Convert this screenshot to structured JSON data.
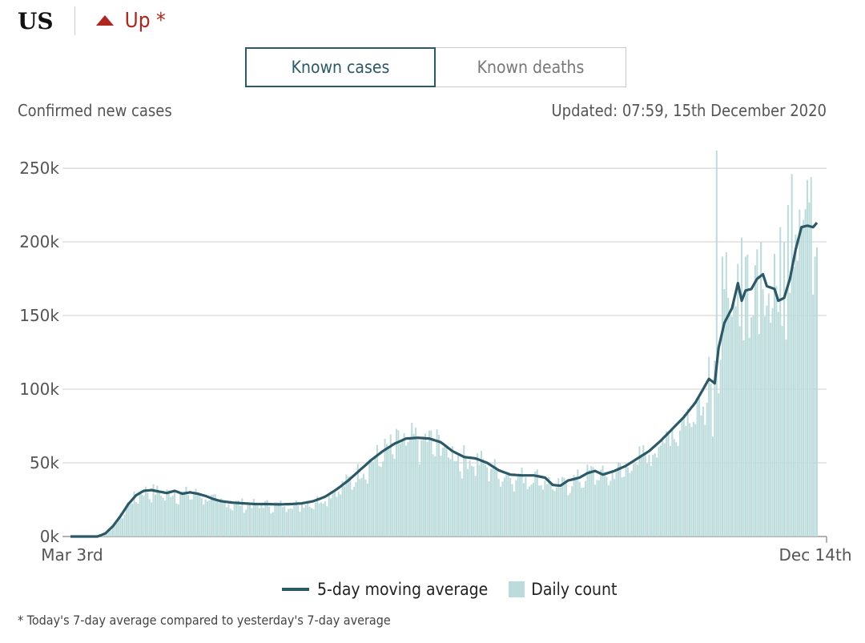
{
  "header": {
    "region": "US",
    "trend_label": "Up *",
    "trend_icon": "triangle-up-icon",
    "trend_color": "#b0261e"
  },
  "tabs": [
    {
      "label": "Known cases",
      "active": true
    },
    {
      "label": "Known deaths",
      "active": false
    }
  ],
  "subtitle_left": "Confirmed new cases",
  "updated": "Updated: 07:59, 15th December 2020",
  "legend": {
    "line_label": "5-day moving average",
    "bar_label": "Daily count"
  },
  "footnote": "* Today's 7-day average compared to yesterday's 7-day average",
  "colors": {
    "line": "#2b5967",
    "bar": "#bcdcdc",
    "grid": "#dddddd",
    "accent": "#b0261e"
  },
  "chart_data": {
    "type": "bar",
    "title": "",
    "xlabel": "",
    "ylabel": "",
    "x_tick_labels": [
      "Mar 3rd",
      "Dec 14th"
    ],
    "y_tick_labels": [
      "0k",
      "50k",
      "100k",
      "150k",
      "200k",
      "250k"
    ],
    "y_ticks": [
      0,
      50000,
      100000,
      150000,
      200000,
      250000
    ],
    "ylim": [
      0,
      262000
    ],
    "grid": true,
    "legend_position": "bottom",
    "series_names": {
      "line": "5-day moving average",
      "bars": "Daily count"
    },
    "avg_knots": [
      [
        0,
        0
      ],
      [
        14,
        0
      ],
      [
        18,
        2000
      ],
      [
        22,
        7000
      ],
      [
        26,
        14000
      ],
      [
        30,
        22000
      ],
      [
        34,
        28000
      ],
      [
        38,
        31000
      ],
      [
        42,
        31500
      ],
      [
        46,
        30500
      ],
      [
        50,
        29500
      ],
      [
        54,
        31000
      ],
      [
        58,
        29000
      ],
      [
        62,
        30000
      ],
      [
        66,
        29000
      ],
      [
        70,
        27500
      ],
      [
        74,
        25500
      ],
      [
        78,
        24000
      ],
      [
        84,
        23000
      ],
      [
        90,
        22500
      ],
      [
        96,
        22000
      ],
      [
        102,
        22000
      ],
      [
        108,
        21800
      ],
      [
        114,
        22000
      ],
      [
        120,
        22500
      ],
      [
        126,
        24000
      ],
      [
        132,
        27000
      ],
      [
        138,
        32000
      ],
      [
        144,
        38000
      ],
      [
        150,
        45000
      ],
      [
        156,
        52000
      ],
      [
        162,
        58000
      ],
      [
        168,
        63000
      ],
      [
        174,
        66500
      ],
      [
        180,
        67000
      ],
      [
        186,
        66500
      ],
      [
        192,
        64000
      ],
      [
        198,
        58000
      ],
      [
        204,
        54000
      ],
      [
        210,
        53000
      ],
      [
        216,
        50000
      ],
      [
        222,
        45000
      ],
      [
        228,
        42000
      ],
      [
        234,
        41500
      ],
      [
        240,
        41500
      ],
      [
        246,
        40000
      ],
      [
        250,
        35000
      ],
      [
        254,
        34500
      ],
      [
        258,
        38000
      ],
      [
        264,
        40000
      ],
      [
        268,
        43000
      ],
      [
        272,
        44500
      ],
      [
        276,
        42000
      ],
      [
        282,
        44500
      ],
      [
        288,
        48000
      ],
      [
        294,
        53000
      ],
      [
        300,
        58000
      ],
      [
        306,
        65000
      ],
      [
        312,
        73000
      ],
      [
        318,
        81000
      ],
      [
        324,
        91000
      ],
      [
        328,
        100000
      ],
      [
        331,
        107000
      ],
      [
        334,
        104000
      ],
      [
        336,
        128000
      ],
      [
        339,
        145000
      ],
      [
        343,
        155000
      ],
      [
        346,
        172000
      ],
      [
        348,
        160000
      ],
      [
        350,
        167000
      ],
      [
        353,
        168000
      ],
      [
        356,
        175000
      ],
      [
        359,
        178000
      ],
      [
        361,
        170000
      ],
      [
        365,
        168000
      ],
      [
        367,
        160000
      ],
      [
        370,
        162000
      ],
      [
        373,
        175000
      ],
      [
        376,
        195000
      ],
      [
        379,
        210000
      ],
      [
        382,
        211000
      ],
      [
        385,
        210000
      ],
      [
        387,
        213000
      ]
    ],
    "daily_note": "daily bar values approximated around the moving average",
    "daily_spikes": [
      [
        331,
        122000
      ],
      [
        333,
        68000
      ],
      [
        335,
        262000
      ],
      [
        337,
        120000
      ],
      [
        338,
        190000
      ],
      [
        340,
        193000
      ],
      [
        342,
        150000
      ],
      [
        344,
        160000
      ],
      [
        346,
        185000
      ],
      [
        348,
        203000
      ],
      [
        350,
        190000
      ],
      [
        352,
        135000
      ],
      [
        354,
        150000
      ],
      [
        356,
        195000
      ],
      [
        358,
        200000
      ],
      [
        362,
        165000
      ],
      [
        364,
        155000
      ],
      [
        366,
        170000
      ],
      [
        368,
        210000
      ],
      [
        370,
        200000
      ],
      [
        372,
        225000
      ],
      [
        374,
        246000
      ],
      [
        376,
        205000
      ],
      [
        378,
        222000
      ],
      [
        380,
        215000
      ],
      [
        382,
        242000
      ],
      [
        384,
        244000
      ],
      [
        386,
        190000
      ]
    ]
  }
}
